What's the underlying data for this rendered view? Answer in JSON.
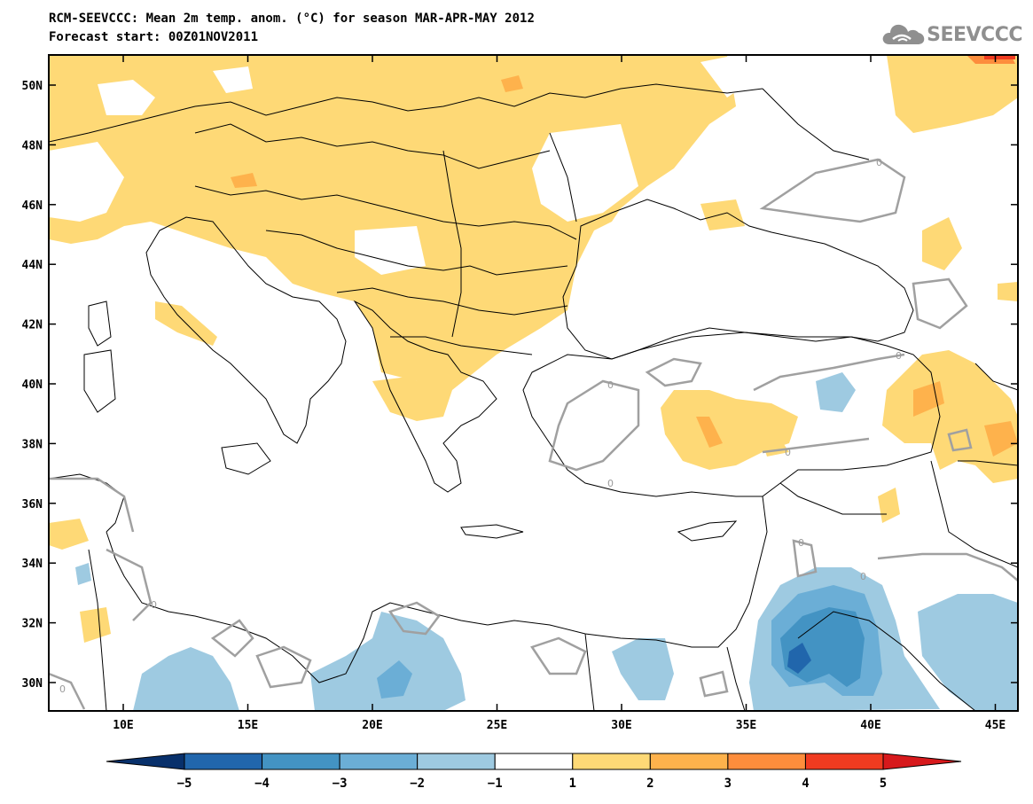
{
  "header": {
    "title_line1": "RCM-SEEVCCC: Mean 2m temp. anom. (°C) for season MAR-APR-MAY 2012",
    "title_line2": "Forecast start: 00Z01NOV2011",
    "logo_text": "SEEVCCC",
    "logo_icon": "cloud-icon"
  },
  "map": {
    "lon_labels": [
      "10E",
      "15E",
      "20E",
      "25E",
      "30E",
      "35E",
      "40E",
      "45E"
    ],
    "lat_labels": [
      "50N",
      "48N",
      "46N",
      "44N",
      "42N",
      "40N",
      "38N",
      "36N",
      "34N",
      "32N",
      "30N"
    ],
    "contour_label": "0"
  },
  "colorbar": {
    "tick_labels": [
      "−5",
      "−4",
      "−3",
      "−2",
      "−1",
      "1",
      "2",
      "3",
      "4",
      "5"
    ],
    "colors": [
      "#08306b",
      "#2166ac",
      "#4393c3",
      "#6baed6",
      "#9ecae1",
      "#ffffff",
      "#fed976",
      "#feb24c",
      "#fd8d3c",
      "#f03b20",
      "#d7191c"
    ]
  },
  "legend_colors": {
    "warm_1_2": "#fed976",
    "warm_2_3": "#feb24c",
    "warm_3_4": "#fd8d3c",
    "warm_4_5": "#f03b20",
    "cool_1_2": "#9ecae1",
    "cool_2_3": "#6baed6",
    "cool_3_4": "#4393c3",
    "cool_4_5": "#2166ac",
    "contour_zero": "#a0a0a0"
  }
}
